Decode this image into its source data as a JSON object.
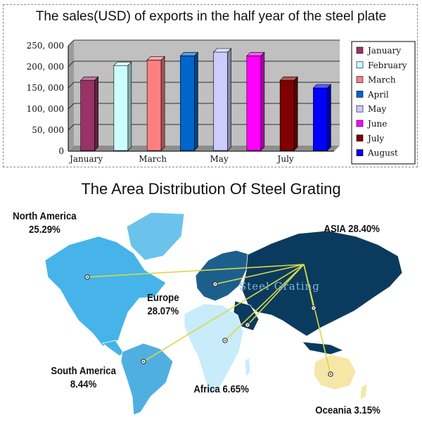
{
  "chart_data": [
    {
      "type": "bar",
      "title": "The sales(USD) of exports in the half year of the steel plate",
      "categories": [
        "January",
        "February",
        "March",
        "April",
        "May",
        "June",
        "July",
        "August"
      ],
      "x_tick_labels": [
        "January",
        "March",
        "May",
        "July"
      ],
      "values": [
        168000,
        203000,
        216000,
        226000,
        235000,
        226000,
        168000,
        150000
      ],
      "ylim": [
        0,
        250000
      ],
      "y_ticks": [
        "0",
        "50, 000",
        "100, 000",
        "150, 000",
        "200, 000",
        "250, 000"
      ],
      "legend": [
        "January",
        "February",
        "March",
        "April",
        "May",
        "June",
        "July",
        "August"
      ],
      "legend_position": "right",
      "grid": true,
      "style": "3d",
      "colors": [
        "#993366",
        "#ccffff",
        "#ff8080",
        "#0066cc",
        "#ccccff",
        "#ff00ff",
        "#800000",
        "#0000ff"
      ]
    },
    {
      "type": "map",
      "title": "The Area Distribution Of Steel Grating",
      "hub_label": "Steel Grating",
      "regions": [
        {
          "name": "North America",
          "value": "25.29%",
          "color": "#46b4e8"
        },
        {
          "name": "ASIA",
          "value": "28.40%",
          "color": "#0a3b5e"
        },
        {
          "name": "Europe",
          "value": "28.07%",
          "color": "#1d5f8c"
        },
        {
          "name": "South America",
          "value": "8.44%",
          "color": "#4fb0e0"
        },
        {
          "name": "Africa",
          "value": "6.65%",
          "color": "#c8ecfa"
        },
        {
          "name": "Oceania",
          "value": "3.15%",
          "color": "#f6e7a8"
        }
      ],
      "connector_color": "#d8d84a"
    }
  ]
}
